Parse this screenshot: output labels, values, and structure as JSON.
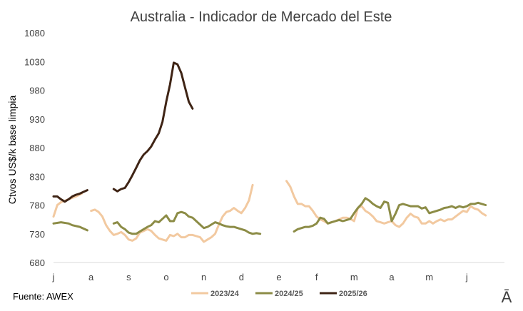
{
  "chart_data": {
    "type": "line",
    "title": "Australia - Indicador de Mercado del Este",
    "ylabel": "Ctvos US$/k base limpia",
    "ylim": [
      680,
      1080
    ],
    "yticks": [
      680,
      730,
      780,
      830,
      880,
      930,
      980,
      1030,
      1080
    ],
    "xlim": [
      0,
      12
    ],
    "months": [
      "j",
      "a",
      "s",
      "o",
      "n",
      "d",
      "e",
      "f",
      "m",
      "a",
      "m",
      "j"
    ],
    "legend_position": "bottom",
    "grid": false,
    "source": "Fuente:  AWEX",
    "brand": "Ā",
    "series": [
      {
        "name": "2023/24",
        "color": "#F2C9A0",
        "segments": [
          [
            [
              0.0,
              760
            ],
            [
              0.1,
              780
            ],
            [
              0.2,
              785
            ],
            [
              0.4,
              790
            ],
            [
              0.6,
              795
            ],
            [
              0.75,
              800
            ]
          ],
          [
            [
              1.0,
              770
            ],
            [
              1.1,
              772
            ],
            [
              1.2,
              768
            ],
            [
              1.3,
              760
            ],
            [
              1.4,
              745
            ],
            [
              1.5,
              735
            ],
            [
              1.6,
              728
            ],
            [
              1.7,
              730
            ],
            [
              1.8,
              733
            ],
            [
              1.9,
              728
            ],
            [
              2.0,
              720
            ],
            [
              2.1,
              718
            ],
            [
              2.2,
              722
            ],
            [
              2.3,
              732
            ],
            [
              2.4,
              735
            ],
            [
              2.5,
              738
            ],
            [
              2.6,
              735
            ],
            [
              2.7,
              728
            ],
            [
              2.8,
              722
            ],
            [
              2.9,
              720
            ],
            [
              3.0,
              718
            ],
            [
              3.1,
              728
            ],
            [
              3.2,
              726
            ],
            [
              3.3,
              730
            ],
            [
              3.4,
              724
            ],
            [
              3.5,
              724
            ],
            [
              3.6,
              728
            ],
            [
              3.7,
              728
            ],
            [
              3.8,
              726
            ],
            [
              3.9,
              724
            ],
            [
              4.0,
              716
            ],
            [
              4.1,
              720
            ],
            [
              4.2,
              724
            ],
            [
              4.3,
              730
            ],
            [
              4.4,
              746
            ],
            [
              4.5,
              760
            ],
            [
              4.6,
              768
            ],
            [
              4.7,
              770
            ],
            [
              4.8,
              775
            ],
            [
              4.9,
              770
            ],
            [
              5.0,
              766
            ],
            [
              5.1,
              775
            ],
            [
              5.2,
              788
            ],
            [
              5.3,
              815
            ]
          ],
          [
            [
              6.2,
              822
            ],
            [
              6.3,
              812
            ],
            [
              6.4,
              795
            ],
            [
              6.5,
              782
            ],
            [
              6.6,
              782
            ],
            [
              6.7,
              778
            ],
            [
              6.8,
              778
            ],
            [
              6.9,
              770
            ],
            [
              7.0,
              760
            ],
            [
              7.1,
              755
            ],
            [
              7.2,
              752
            ],
            [
              7.3,
              748
            ],
            [
              7.4,
              750
            ],
            [
              7.5,
              752
            ],
            [
              7.6,
              755
            ],
            [
              7.7,
              758
            ],
            [
              7.8,
              758
            ],
            [
              7.9,
              756
            ],
            [
              8.0,
              752
            ],
            [
              8.1,
              775
            ],
            [
              8.2,
              778
            ],
            [
              8.3,
              770
            ],
            [
              8.4,
              766
            ],
            [
              8.5,
              760
            ],
            [
              8.6,
              752
            ],
            [
              8.7,
              750
            ],
            [
              8.8,
              748
            ],
            [
              8.9,
              750
            ],
            [
              9.0,
              752
            ],
            [
              9.1,
              745
            ],
            [
              9.2,
              742
            ],
            [
              9.3,
              748
            ],
            [
              9.4,
              758
            ],
            [
              9.5,
              765
            ],
            [
              9.6,
              760
            ],
            [
              9.7,
              758
            ],
            [
              9.8,
              748
            ],
            [
              9.9,
              748
            ],
            [
              10.0,
              752
            ],
            [
              10.1,
              748
            ],
            [
              10.2,
              752
            ],
            [
              10.3,
              755
            ],
            [
              10.4,
              752
            ],
            [
              10.5,
              755
            ],
            [
              10.6,
              755
            ],
            [
              10.7,
              760
            ],
            [
              10.8,
              765
            ],
            [
              10.9,
              770
            ],
            [
              11.0,
              768
            ],
            [
              11.1,
              778
            ],
            [
              11.2,
              774
            ],
            [
              11.3,
              772
            ],
            [
              11.4,
              766
            ],
            [
              11.5,
              762
            ]
          ]
        ]
      },
      {
        "name": "2024/25",
        "color": "#8C8C46",
        "segments": [
          [
            [
              0.0,
              748
            ],
            [
              0.2,
              750
            ],
            [
              0.4,
              748
            ],
            [
              0.5,
              745
            ],
            [
              0.7,
              742
            ],
            [
              0.9,
              736
            ]
          ],
          [
            [
              1.6,
              748
            ],
            [
              1.7,
              750
            ],
            [
              1.8,
              742
            ],
            [
              1.9,
              738
            ],
            [
              2.0,
              732
            ],
            [
              2.1,
              730
            ],
            [
              2.2,
              730
            ],
            [
              2.3,
              734
            ],
            [
              2.4,
              738
            ],
            [
              2.5,
              742
            ],
            [
              2.6,
              745
            ],
            [
              2.7,
              752
            ],
            [
              2.8,
              750
            ],
            [
              2.9,
              756
            ],
            [
              3.0,
              762
            ],
            [
              3.1,
              752
            ],
            [
              3.2,
              752
            ],
            [
              3.3,
              766
            ],
            [
              3.4,
              768
            ],
            [
              3.5,
              766
            ],
            [
              3.6,
              760
            ],
            [
              3.7,
              758
            ],
            [
              3.8,
              752
            ],
            [
              3.9,
              746
            ],
            [
              4.0,
              740
            ],
            [
              4.1,
              742
            ],
            [
              4.2,
              746
            ],
            [
              4.3,
              750
            ],
            [
              4.4,
              748
            ],
            [
              4.5,
              745
            ],
            [
              4.6,
              743
            ],
            [
              4.7,
              742
            ],
            [
              4.8,
              742
            ],
            [
              4.9,
              740
            ],
            [
              5.0,
              738
            ],
            [
              5.1,
              736
            ],
            [
              5.2,
              732
            ],
            [
              5.3,
              730
            ],
            [
              5.4,
              731
            ],
            [
              5.5,
              730
            ]
          ],
          [
            [
              6.4,
              734
            ],
            [
              6.5,
              738
            ],
            [
              6.6,
              740
            ],
            [
              6.7,
              742
            ],
            [
              6.8,
              742
            ],
            [
              6.9,
              744
            ],
            [
              7.0,
              748
            ],
            [
              7.1,
              758
            ],
            [
              7.2,
              756
            ],
            [
              7.3,
              748
            ],
            [
              7.4,
              750
            ],
            [
              7.5,
              752
            ],
            [
              7.6,
              754
            ],
            [
              7.7,
              752
            ],
            [
              7.8,
              754
            ],
            [
              7.9,
              756
            ],
            [
              8.0,
              766
            ],
            [
              8.1,
              775
            ],
            [
              8.2,
              782
            ],
            [
              8.3,
              792
            ],
            [
              8.4,
              788
            ],
            [
              8.5,
              782
            ],
            [
              8.6,
              778
            ],
            [
              8.7,
              775
            ],
            [
              8.8,
              786
            ],
            [
              8.9,
              784
            ],
            [
              9.0,
              752
            ],
            [
              9.1,
              765
            ],
            [
              9.2,
              780
            ],
            [
              9.3,
              782
            ],
            [
              9.4,
              780
            ],
            [
              9.5,
              778
            ],
            [
              9.6,
              778
            ],
            [
              9.7,
              778
            ],
            [
              9.8,
              774
            ],
            [
              9.9,
              776
            ],
            [
              10.0,
              766
            ],
            [
              10.1,
              768
            ],
            [
              10.2,
              770
            ],
            [
              10.3,
              772
            ],
            [
              10.4,
              775
            ],
            [
              10.5,
              776
            ],
            [
              10.6,
              778
            ],
            [
              10.7,
              775
            ],
            [
              10.8,
              778
            ],
            [
              10.9,
              776
            ],
            [
              11.0,
              778
            ],
            [
              11.1,
              782
            ],
            [
              11.2,
              782
            ],
            [
              11.3,
              784
            ],
            [
              11.4,
              782
            ],
            [
              11.5,
              780
            ]
          ]
        ]
      },
      {
        "name": "2025/26",
        "color": "#3F2415",
        "segments": [
          [
            [
              0.0,
              795
            ],
            [
              0.1,
              795
            ],
            [
              0.2,
              790
            ],
            [
              0.3,
              786
            ],
            [
              0.4,
              790
            ],
            [
              0.5,
              795
            ],
            [
              0.6,
              798
            ],
            [
              0.7,
              800
            ],
            [
              0.8,
              803
            ],
            [
              0.9,
              806
            ]
          ],
          [
            [
              1.6,
              808
            ],
            [
              1.7,
              804
            ],
            [
              1.8,
              808
            ],
            [
              1.9,
              810
            ],
            [
              2.0,
              820
            ],
            [
              2.1,
              832
            ],
            [
              2.2,
              845
            ],
            [
              2.3,
              858
            ],
            [
              2.4,
              868
            ],
            [
              2.5,
              874
            ],
            [
              2.6,
              882
            ],
            [
              2.7,
              894
            ],
            [
              2.8,
              905
            ],
            [
              2.9,
              925
            ],
            [
              3.0,
              960
            ],
            [
              3.1,
              990
            ],
            [
              3.2,
              1028
            ],
            [
              3.3,
              1025
            ],
            [
              3.4,
              1010
            ],
            [
              3.5,
              985
            ],
            [
              3.6,
              960
            ],
            [
              3.7,
              948
            ]
          ]
        ]
      }
    ]
  }
}
